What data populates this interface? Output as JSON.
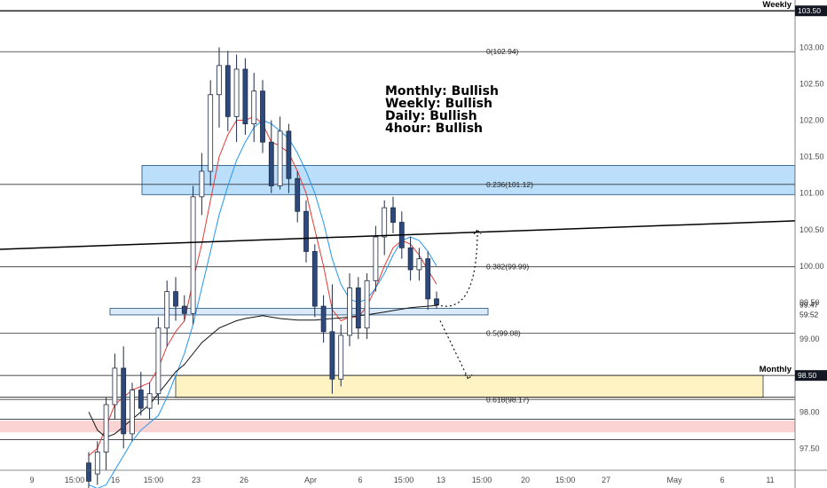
{
  "chart_data": {
    "type": "candlestick",
    "y_axis": {
      "range": [
        97.2,
        103.6
      ],
      "ticks": [
        "103.00",
        "102.50",
        "102.00",
        "101.50",
        "101.00",
        "100.50",
        "100.00",
        "99.50",
        "99.00",
        "98.50",
        "98.00",
        "97.50"
      ],
      "current_price": "99.47",
      "countdown": "59:52"
    },
    "x_axis": {
      "ticks": [
        "9",
        "15:00",
        "16",
        "15:00",
        "23",
        "26",
        "Apr",
        "6",
        "15:00",
        "13",
        "15:00",
        "20",
        "15:00",
        "27",
        "May",
        "6",
        "11"
      ]
    },
    "price_tags": [
      {
        "label": "103.50",
        "value": 103.5
      },
      {
        "label": "98.50",
        "value": 98.5
      }
    ],
    "timeframe_labels": [
      {
        "text": "Weekly",
        "level": 103.5
      },
      {
        "text": "Monthly",
        "level": 98.5
      }
    ],
    "fibonacci_levels": [
      {
        "label": "0(102.94)",
        "ratio": 0,
        "value": 102.94
      },
      {
        "label": "0.236(101.12)",
        "ratio": 0.236,
        "value": 101.12
      },
      {
        "label": "0.382(99.99)",
        "ratio": 0.382,
        "value": 99.99
      },
      {
        "label": "0.5(99.08)",
        "ratio": 0.5,
        "value": 99.08
      },
      {
        "label": "0.618(98.17)",
        "ratio": 0.618,
        "value": 98.17
      }
    ],
    "horizontal_lines": [
      103.5,
      98.5,
      98.2,
      97.9,
      97.62
    ],
    "zones": [
      {
        "kind": "resistance",
        "from": 100.98,
        "to": 101.38,
        "color": "#bbdefb",
        "border": "#1e4e79"
      },
      {
        "kind": "support",
        "from": 99.33,
        "to": 99.42,
        "color": "#dbeafb",
        "border": "#1e4e79"
      },
      {
        "kind": "monthly",
        "from": 98.2,
        "to": 98.5,
        "color": "#fff3c4",
        "border": "#333333"
      },
      {
        "kind": "red",
        "from": 97.72,
        "to": 97.88,
        "color": "#fbd3d3",
        "border": "none"
      }
    ],
    "trendline": {
      "from": 100.23,
      "to": 100.62
    },
    "bias": [
      "Monthly: Bullish",
      "Weekly: Bullish",
      "Daily: Bullish",
      "4hour: Bullish"
    ],
    "candles": [
      {
        "o": 97.3,
        "h": 97.45,
        "l": 96.9,
        "c": 97.05
      },
      {
        "o": 97.15,
        "h": 97.6,
        "l": 97.0,
        "c": 97.45
      },
      {
        "o": 97.45,
        "h": 98.2,
        "l": 97.2,
        "c": 98.1
      },
      {
        "o": 98.1,
        "h": 98.8,
        "l": 97.9,
        "c": 98.6
      },
      {
        "o": 98.6,
        "h": 98.9,
        "l": 97.5,
        "c": 97.7
      },
      {
        "o": 97.7,
        "h": 98.4,
        "l": 97.6,
        "c": 98.3
      },
      {
        "o": 98.3,
        "h": 98.55,
        "l": 97.95,
        "c": 98.05
      },
      {
        "o": 98.05,
        "h": 98.4,
        "l": 97.9,
        "c": 98.25
      },
      {
        "o": 98.25,
        "h": 99.3,
        "l": 98.1,
        "c": 99.15
      },
      {
        "o": 99.15,
        "h": 99.8,
        "l": 98.9,
        "c": 99.65
      },
      {
        "o": 99.65,
        "h": 99.85,
        "l": 99.25,
        "c": 99.45
      },
      {
        "o": 99.45,
        "h": 99.6,
        "l": 99.25,
        "c": 99.35
      },
      {
        "o": 99.35,
        "h": 101.1,
        "l": 99.2,
        "c": 100.95
      },
      {
        "o": 100.95,
        "h": 101.55,
        "l": 100.7,
        "c": 101.3
      },
      {
        "o": 101.3,
        "h": 102.55,
        "l": 101.1,
        "c": 102.35
      },
      {
        "o": 102.35,
        "h": 103.0,
        "l": 101.9,
        "c": 102.75
      },
      {
        "o": 102.75,
        "h": 102.95,
        "l": 101.85,
        "c": 102.05
      },
      {
        "o": 102.05,
        "h": 102.9,
        "l": 101.7,
        "c": 102.7
      },
      {
        "o": 102.7,
        "h": 102.85,
        "l": 101.8,
        "c": 101.95
      },
      {
        "o": 101.95,
        "h": 102.65,
        "l": 101.7,
        "c": 102.4
      },
      {
        "o": 102.4,
        "h": 102.55,
        "l": 101.55,
        "c": 101.7
      },
      {
        "o": 101.7,
        "h": 102.0,
        "l": 101.0,
        "c": 101.1
      },
      {
        "o": 101.1,
        "h": 102.05,
        "l": 101.05,
        "c": 101.85
      },
      {
        "o": 101.85,
        "h": 101.95,
        "l": 101.0,
        "c": 101.2
      },
      {
        "o": 101.2,
        "h": 101.3,
        "l": 100.6,
        "c": 100.75
      },
      {
        "o": 100.75,
        "h": 100.9,
        "l": 100.05,
        "c": 100.2
      },
      {
        "o": 100.2,
        "h": 100.3,
        "l": 99.3,
        "c": 99.45
      },
      {
        "o": 99.45,
        "h": 99.6,
        "l": 98.95,
        "c": 99.1
      },
      {
        "o": 99.1,
        "h": 99.75,
        "l": 98.25,
        "c": 98.45
      },
      {
        "o": 98.45,
        "h": 99.2,
        "l": 98.35,
        "c": 99.05
      },
      {
        "o": 99.05,
        "h": 99.9,
        "l": 98.9,
        "c": 99.7
      },
      {
        "o": 99.7,
        "h": 99.85,
        "l": 99.0,
        "c": 99.15
      },
      {
        "o": 99.15,
        "h": 99.9,
        "l": 99.0,
        "c": 99.8
      },
      {
        "o": 99.8,
        "h": 100.55,
        "l": 99.65,
        "c": 100.4
      },
      {
        "o": 100.4,
        "h": 100.9,
        "l": 100.15,
        "c": 100.8
      },
      {
        "o": 100.8,
        "h": 100.95,
        "l": 100.45,
        "c": 100.6
      },
      {
        "o": 100.6,
        "h": 100.75,
        "l": 100.1,
        "c": 100.25
      },
      {
        "o": 100.25,
        "h": 100.4,
        "l": 99.8,
        "c": 99.95
      },
      {
        "o": 99.95,
        "h": 100.25,
        "l": 99.8,
        "c": 100.1
      },
      {
        "o": 100.1,
        "h": 100.2,
        "l": 99.4,
        "c": 99.55
      },
      {
        "o": 99.55,
        "h": 99.65,
        "l": 99.42,
        "c": 99.47
      }
    ],
    "moving_averages": [
      {
        "name": "",
        "color": "#e53935",
        "values": [
          97.4,
          97.5,
          97.8,
          98.1,
          98.2,
          98.3,
          98.35,
          98.4,
          98.6,
          98.9,
          99.1,
          99.25,
          99.8,
          100.3,
          100.9,
          101.5,
          101.8,
          102.0,
          102.0,
          102.05,
          101.95,
          101.7,
          101.65,
          101.55,
          101.3,
          101.0,
          100.5,
          100.0,
          99.4,
          99.25,
          99.3,
          99.3,
          99.45,
          99.7,
          100.0,
          100.25,
          100.35,
          100.3,
          100.15,
          99.95,
          99.75
        ]
      },
      {
        "name": "",
        "color": "#2196f3",
        "values": [
          97.0,
          96.95,
          97.0,
          97.2,
          97.4,
          97.6,
          97.75,
          97.85,
          97.95,
          98.2,
          98.5,
          98.8,
          99.2,
          99.7,
          100.2,
          100.7,
          101.1,
          101.45,
          101.7,
          101.9,
          102.0,
          101.95,
          101.85,
          101.75,
          101.55,
          101.3,
          101.0,
          100.6,
          100.1,
          99.75,
          99.55,
          99.5,
          99.55,
          99.7,
          99.9,
          100.15,
          100.35,
          100.4,
          100.35,
          100.2,
          100.0
        ]
      },
      {
        "name": "",
        "color": "#111111",
        "values": [
          98.0,
          97.75,
          97.65,
          97.7,
          97.8,
          97.9,
          98.0,
          98.1,
          98.25,
          98.4,
          98.55,
          98.65,
          98.8,
          98.95,
          99.05,
          99.15,
          99.2,
          99.25,
          99.28,
          99.3,
          99.32,
          99.3,
          99.28,
          99.27,
          99.26,
          99.26,
          99.26,
          99.27,
          99.28,
          99.29,
          99.3,
          99.32,
          99.33,
          99.35,
          99.37,
          99.39,
          99.41,
          99.43,
          99.44,
          99.45,
          99.46
        ]
      }
    ],
    "projections": [
      {
        "name": "bullish-projection",
        "points": [
          [
            99.55,
            99.47
          ],
          [
            99.9,
            99.3
          ],
          [
            100.5,
            100.5
          ]
        ]
      },
      {
        "name": "bearish-projection",
        "points": [
          [
            99.47,
            99.25
          ],
          [
            98.9,
            98.9
          ],
          [
            98.45,
            98.45
          ]
        ]
      }
    ]
  }
}
